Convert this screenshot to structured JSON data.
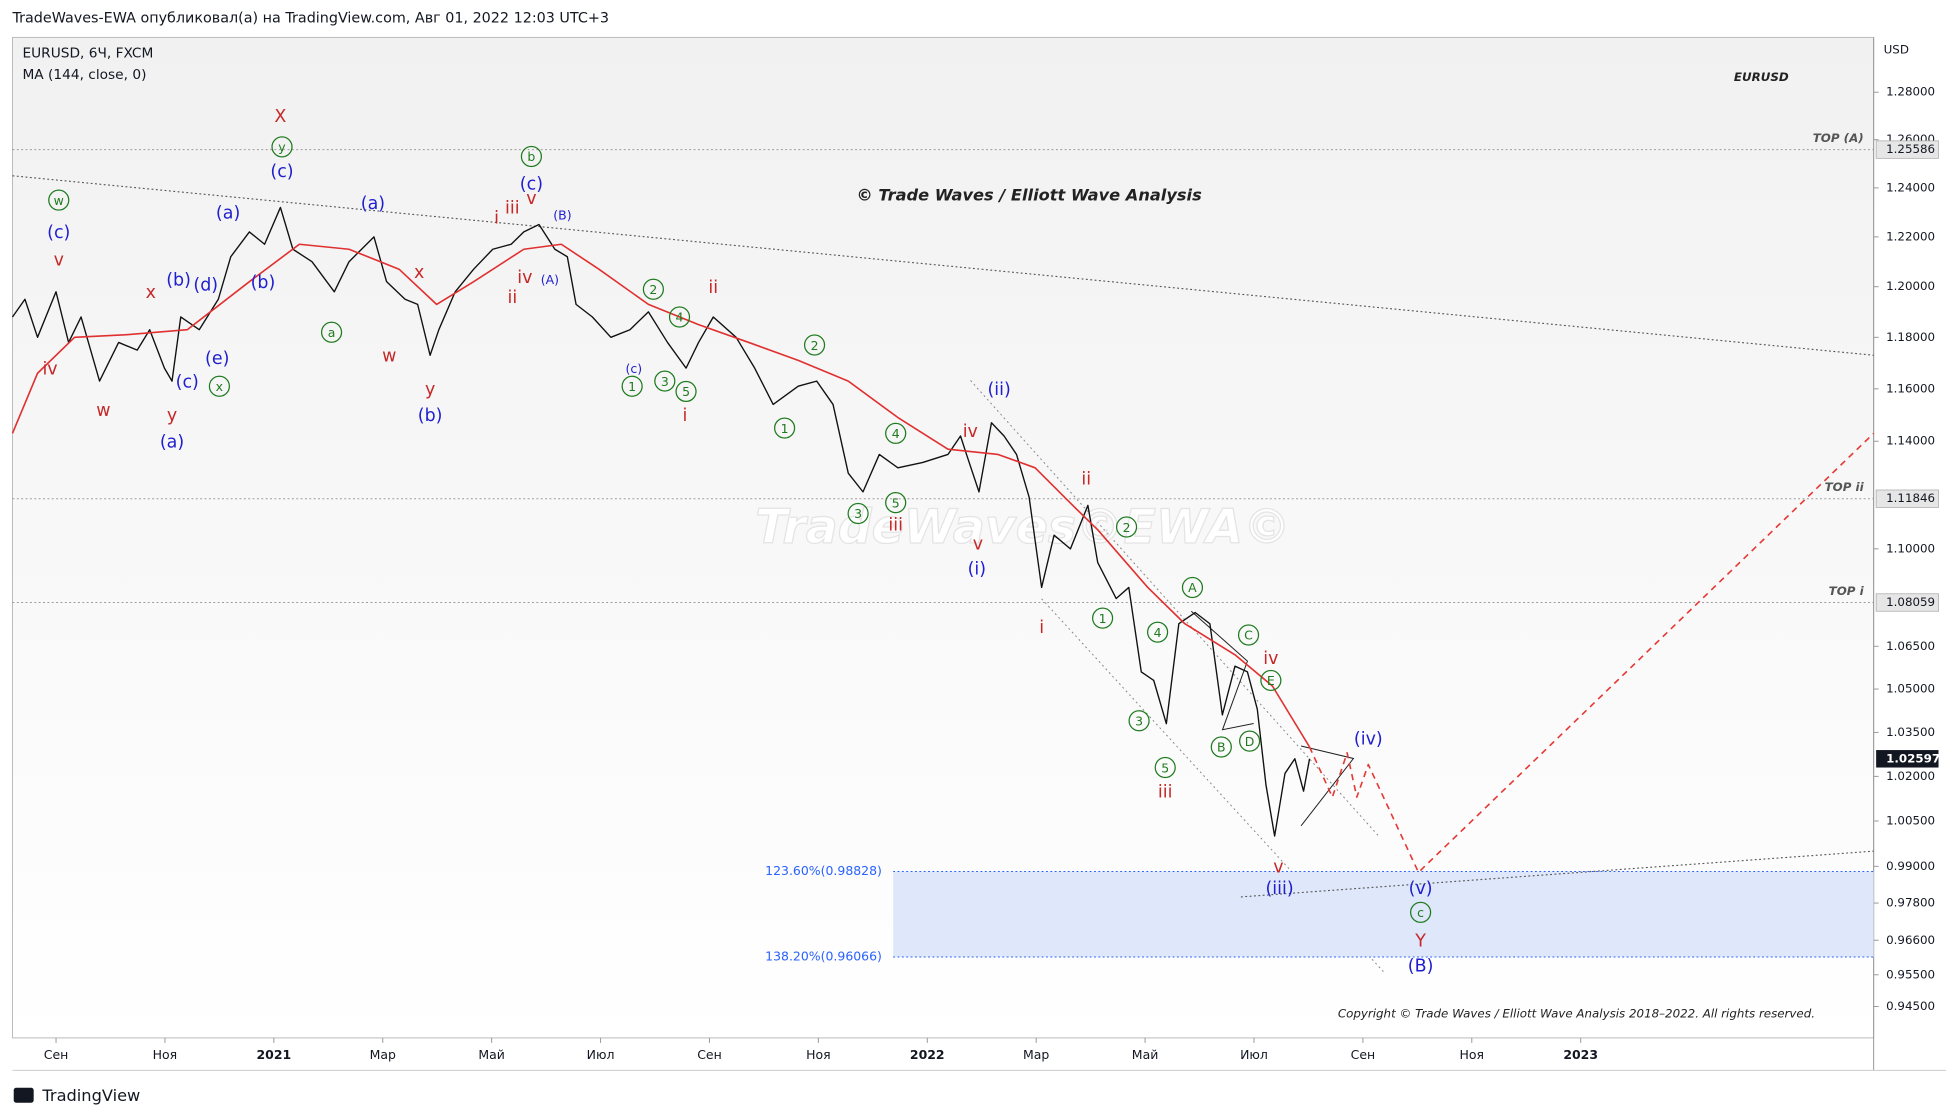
{
  "header": "TradeWaves-EWA опубликовал(а) на TradingView.com, Авг 01, 2022 12:03 UTC+3",
  "footer": "TradingView",
  "chart_data": {
    "type": "line",
    "symbol": "EURUSD, 6Ч, FXCM",
    "indicator": "MA (144, close, 0)",
    "symbol_tag": "EURUSD",
    "title": "© Trade Waves / Elliott Wave Analysis",
    "watermark": "TradeWaves©EWA©",
    "copyright": "Copyright © Trade Waves / Elliott Wave Analysis 2018–2022. All rights reserved.",
    "currency": "USD",
    "log_scale": true,
    "xlim": [
      -0.8,
      33.38
    ],
    "ylim": [
      0.9352,
      1.3035
    ],
    "xticks": [
      {
        "value": 0,
        "label": "Сен"
      },
      {
        "value": 2,
        "label": "Ноя"
      },
      {
        "value": 4,
        "label": "2021"
      },
      {
        "value": 6,
        "label": "Мар"
      },
      {
        "value": 8,
        "label": "Май"
      },
      {
        "value": 10,
        "label": "Июл"
      },
      {
        "value": 12,
        "label": "Сен"
      },
      {
        "value": 14,
        "label": "Ноя"
      },
      {
        "value": 16,
        "label": "2022"
      },
      {
        "value": 18,
        "label": "Мар"
      },
      {
        "value": 20,
        "label": "Май"
      },
      {
        "value": 22,
        "label": "Июл"
      },
      {
        "value": 24,
        "label": "Сен"
      },
      {
        "value": 26,
        "label": "Ноя"
      },
      {
        "value": 28,
        "label": "2023"
      }
    ],
    "yticks": [
      {
        "value": 1.28,
        "label": "1.28000"
      },
      {
        "value": 1.26,
        "label": "1.26000"
      },
      {
        "value": 1.24,
        "label": "1.24000"
      },
      {
        "value": 1.22,
        "label": "1.22000"
      },
      {
        "value": 1.2,
        "label": "1.20000"
      },
      {
        "value": 1.18,
        "label": "1.18000"
      },
      {
        "value": 1.16,
        "label": "1.16000"
      },
      {
        "value": 1.14,
        "label": "1.14000"
      },
      {
        "value": 1.1,
        "label": "1.10000"
      },
      {
        "value": 1.065,
        "label": "1.06500"
      },
      {
        "value": 1.05,
        "label": "1.05000"
      },
      {
        "value": 1.035,
        "label": "1.03500"
      },
      {
        "value": 1.02,
        "label": "1.02000"
      },
      {
        "value": 1.005,
        "label": "1.00500"
      },
      {
        "value": 0.99,
        "label": "0.99000"
      },
      {
        "value": 0.978,
        "label": "0.97800"
      },
      {
        "value": 0.966,
        "label": "0.96600"
      },
      {
        "value": 0.955,
        "label": "0.95500"
      },
      {
        "value": 0.945,
        "label": "0.94500"
      }
    ],
    "series": [
      {
        "color": "#111111",
        "x": [
          -0.8,
          -0.57,
          -0.34,
          0,
          0.23,
          0.46,
          0.8,
          1.15,
          1.49,
          1.72,
          1.99,
          2.13,
          2.29,
          2.63,
          2.98,
          3.21,
          3.55,
          3.83,
          4.12,
          4.35,
          4.7,
          5.11,
          5.38,
          5.84,
          6.07,
          6.41,
          6.64,
          6.87,
          7.03,
          7.33,
          7.67,
          8.02,
          8.36,
          8.59,
          8.87,
          9.16,
          9.39,
          9.55,
          9.85,
          10.19,
          10.54,
          10.88,
          11.23,
          11.57,
          11.8,
          12.07,
          12.49,
          12.83,
          13.17,
          13.63,
          13.97,
          14.27,
          14.55,
          14.82,
          15.12,
          15.46,
          15.92,
          16.38,
          16.61,
          16.72,
          16.95,
          17.18,
          17.41,
          17.64,
          17.87,
          18.1,
          18.33,
          18.63,
          18.95,
          19.13,
          19.47,
          19.7,
          19.93,
          20.16,
          20.39,
          20.62,
          20.92,
          21.19,
          21.42,
          21.65,
          21.88,
          22.06,
          22.22,
          22.38,
          22.57,
          22.75,
          22.91,
          23.02
        ],
        "values": [
          1.188,
          1.195,
          1.18,
          1.198,
          1.178,
          1.188,
          1.163,
          1.178,
          1.175,
          1.183,
          1.168,
          1.163,
          1.188,
          1.183,
          1.195,
          1.212,
          1.222,
          1.217,
          1.232,
          1.215,
          1.21,
          1.198,
          1.21,
          1.22,
          1.202,
          1.195,
          1.193,
          1.173,
          1.183,
          1.198,
          1.207,
          1.215,
          1.217,
          1.222,
          1.225,
          1.215,
          1.212,
          1.193,
          1.188,
          1.18,
          1.183,
          1.19,
          1.178,
          1.168,
          1.178,
          1.188,
          1.18,
          1.168,
          1.154,
          1.161,
          1.163,
          1.154,
          1.128,
          1.121,
          1.135,
          1.13,
          1.132,
          1.135,
          1.142,
          1.135,
          1.121,
          1.147,
          1.142,
          1.135,
          1.119,
          1.086,
          1.105,
          1.1,
          1.116,
          1.095,
          1.082,
          1.086,
          1.056,
          1.053,
          1.038,
          1.073,
          1.077,
          1.073,
          1.041,
          1.058,
          1.056,
          1.043,
          1.017,
          1.0,
          1.021,
          1.026,
          1.015,
          1.026
        ]
      },
      {
        "color": "#e03030",
        "x": [
          -0.8,
          -0.34,
          0.34,
          1.26,
          2.41,
          3.55,
          4.47,
          5.38,
          6.3,
          6.99,
          7.67,
          8.59,
          9.28,
          9.97,
          10.88,
          11.8,
          12.72,
          13.63,
          14.55,
          15.46,
          16.38,
          17.3,
          17.98,
          18.67,
          19.13,
          20.05,
          20.73,
          21.65,
          22.34,
          23.02
        ],
        "values": [
          1.143,
          1.166,
          1.18,
          1.181,
          1.183,
          1.202,
          1.217,
          1.215,
          1.207,
          1.193,
          1.202,
          1.215,
          1.217,
          1.207,
          1.193,
          1.185,
          1.178,
          1.171,
          1.163,
          1.149,
          1.137,
          1.135,
          1.13,
          1.116,
          1.107,
          1.086,
          1.073,
          1.062,
          1.051,
          1.03
        ]
      },
      {
        "color": "#e53935",
        "dash": true,
        "x": [
          23.02,
          23.44,
          23.71,
          23.89,
          24.1,
          25.02,
          33.38
        ],
        "values": [
          1.03,
          1.013,
          1.028,
          1.013,
          1.024,
          0.988,
          1.143
        ]
      }
    ],
    "trendlines": [
      {
        "color": "#555555",
        "x": [
          -0.8,
          33.38
        ],
        "values": [
          1.245,
          1.173
        ]
      },
      {
        "color": "#555555",
        "x": [
          21.76,
          33.38
        ],
        "values": [
          0.98,
          0.995
        ]
      }
    ],
    "levels": [
      {
        "value": 1.25586,
        "label": "TOP (A)"
      },
      {
        "value": 1.11846,
        "label": "TOP ii"
      },
      {
        "value": 1.08059,
        "label": "TOP i"
      }
    ],
    "last_price": 1.02597,
    "fib_levels": [
      {
        "value": 0.98828,
        "label": "123.60%(0.98828)"
      },
      {
        "value": 0.96066,
        "label": "138.20%(0.96066)"
      }
    ],
    "fib_color": "#2962ff",
    "zone_color": "#dfe7fa",
    "wave_labels": [
      {
        "text": "w",
        "x": 0.05,
        "y": 1.235,
        "color": "#1e7b1e",
        "circled": true
      },
      {
        "text": "(c)",
        "x": 0.05,
        "y": 1.222,
        "color": "#1f1fd1"
      },
      {
        "text": "v",
        "x": 0.05,
        "y": 1.211,
        "color": "#c62828"
      },
      {
        "text": "iv",
        "x": -0.11,
        "y": 1.168,
        "color": "#c62828"
      },
      {
        "text": "w",
        "x": 0.87,
        "y": 1.152,
        "color": "#c62828"
      },
      {
        "text": "x",
        "x": 1.74,
        "y": 1.198,
        "color": "#c62828"
      },
      {
        "text": "(b)",
        "x": 2.25,
        "y": 1.203,
        "color": "#1f1fd1"
      },
      {
        "text": "(d)",
        "x": 2.75,
        "y": 1.201,
        "color": "#1f1fd1"
      },
      {
        "text": "(c)",
        "x": 2.41,
        "y": 1.163,
        "color": "#1f1fd1"
      },
      {
        "text": "y",
        "x": 2.13,
        "y": 1.15,
        "color": "#c62828"
      },
      {
        "text": "(a)",
        "x": 2.13,
        "y": 1.14,
        "color": "#1f1fd1"
      },
      {
        "text": "(e)",
        "x": 2.96,
        "y": 1.172,
        "color": "#1f1fd1"
      },
      {
        "text": "x",
        "x": 3.0,
        "y": 1.161,
        "color": "#1e7b1e",
        "circled": true
      },
      {
        "text": "(a)",
        "x": 3.16,
        "y": 1.23,
        "color": "#1f1fd1"
      },
      {
        "text": "X",
        "x": 4.12,
        "y": 1.27,
        "color": "#c62828"
      },
      {
        "text": "y",
        "x": 4.15,
        "y": 1.257,
        "color": "#1e7b1e",
        "circled": true
      },
      {
        "text": "(c)",
        "x": 4.15,
        "y": 1.247,
        "color": "#1f1fd1"
      },
      {
        "text": "(b)",
        "x": 3.8,
        "y": 1.202,
        "color": "#1f1fd1"
      },
      {
        "text": "a",
        "x": 5.06,
        "y": 1.182,
        "color": "#1e7b1e",
        "circled": true
      },
      {
        "text": "(a)",
        "x": 5.82,
        "y": 1.234,
        "color": "#1f1fd1"
      },
      {
        "text": "w",
        "x": 6.12,
        "y": 1.173,
        "color": "#c62828"
      },
      {
        "text": "x",
        "x": 6.67,
        "y": 1.206,
        "color": "#c62828"
      },
      {
        "text": "y",
        "x": 6.87,
        "y": 1.16,
        "color": "#c62828"
      },
      {
        "text": "(b)",
        "x": 6.87,
        "y": 1.15,
        "color": "#1f1fd1"
      },
      {
        "text": "i",
        "x": 8.09,
        "y": 1.228,
        "color": "#c62828"
      },
      {
        "text": "iii",
        "x": 8.38,
        "y": 1.232,
        "color": "#c62828"
      },
      {
        "text": "b",
        "x": 8.73,
        "y": 1.253,
        "color": "#1e7b1e",
        "circled": true
      },
      {
        "text": "(c)",
        "x": 8.73,
        "y": 1.242,
        "color": "#1f1fd1"
      },
      {
        "text": "v",
        "x": 8.73,
        "y": 1.236,
        "color": "#c62828"
      },
      {
        "text": "iv",
        "x": 8.61,
        "y": 1.204,
        "color": "#c62828"
      },
      {
        "text": "ii",
        "x": 8.38,
        "y": 1.196,
        "color": "#c62828"
      },
      {
        "text": "(B)",
        "x": 9.3,
        "y": 1.229,
        "color": "#1f1fd1",
        "small": true
      },
      {
        "text": "(A)",
        "x": 9.07,
        "y": 1.203,
        "color": "#1f1fd1",
        "small": true
      },
      {
        "text": "2",
        "x": 10.97,
        "y": 1.199,
        "color": "#1e7b1e",
        "circled": true
      },
      {
        "text": "4",
        "x": 11.45,
        "y": 1.188,
        "color": "#1e7b1e",
        "circled": true
      },
      {
        "text": "(c)",
        "x": 10.61,
        "y": 1.168,
        "color": "#1f1fd1",
        "small": true
      },
      {
        "text": "1",
        "x": 10.58,
        "y": 1.161,
        "color": "#1e7b1e",
        "circled": true
      },
      {
        "text": "3",
        "x": 11.18,
        "y": 1.163,
        "color": "#1e7b1e",
        "circled": true
      },
      {
        "text": "5",
        "x": 11.57,
        "y": 1.159,
        "color": "#1e7b1e",
        "circled": true
      },
      {
        "text": "i",
        "x": 11.55,
        "y": 1.15,
        "color": "#c62828"
      },
      {
        "text": "ii",
        "x": 12.07,
        "y": 1.2,
        "color": "#c62828"
      },
      {
        "text": "2",
        "x": 13.93,
        "y": 1.177,
        "color": "#1e7b1e",
        "circled": true
      },
      {
        "text": "1",
        "x": 13.38,
        "y": 1.145,
        "color": "#1e7b1e",
        "circled": true
      },
      {
        "text": "4",
        "x": 15.42,
        "y": 1.143,
        "color": "#1e7b1e",
        "circled": true
      },
      {
        "text": "3",
        "x": 14.73,
        "y": 1.113,
        "color": "#1e7b1e",
        "circled": true
      },
      {
        "text": "5",
        "x": 15.42,
        "y": 1.117,
        "color": "#1e7b1e",
        "circled": true
      },
      {
        "text": "iii",
        "x": 15.42,
        "y": 1.109,
        "color": "#c62828"
      },
      {
        "text": "iv",
        "x": 16.79,
        "y": 1.144,
        "color": "#c62828"
      },
      {
        "text": "(ii)",
        "x": 17.32,
        "y": 1.16,
        "color": "#1f1fd1"
      },
      {
        "text": "v",
        "x": 16.93,
        "y": 1.102,
        "color": "#c62828"
      },
      {
        "text": "(i)",
        "x": 16.91,
        "y": 1.093,
        "color": "#1f1fd1"
      },
      {
        "text": "ii",
        "x": 18.92,
        "y": 1.126,
        "color": "#c62828"
      },
      {
        "text": "2",
        "x": 19.66,
        "y": 1.108,
        "color": "#1e7b1e",
        "circled": true
      },
      {
        "text": "i",
        "x": 18.1,
        "y": 1.072,
        "color": "#c62828"
      },
      {
        "text": "1",
        "x": 19.22,
        "y": 1.075,
        "color": "#1e7b1e",
        "circled": true
      },
      {
        "text": "A",
        "x": 20.87,
        "y": 1.086,
        "color": "#1e7b1e",
        "circled": true
      },
      {
        "text": "4",
        "x": 20.23,
        "y": 1.07,
        "color": "#1e7b1e",
        "circled": true
      },
      {
        "text": "3",
        "x": 19.89,
        "y": 1.039,
        "color": "#1e7b1e",
        "circled": true
      },
      {
        "text": "5",
        "x": 20.37,
        "y": 1.023,
        "color": "#1e7b1e",
        "circled": true
      },
      {
        "text": "iii",
        "x": 20.37,
        "y": 1.015,
        "color": "#c62828"
      },
      {
        "text": "C",
        "x": 21.9,
        "y": 1.069,
        "color": "#1e7b1e",
        "circled": true
      },
      {
        "text": "iv",
        "x": 22.31,
        "y": 1.061,
        "color": "#c62828"
      },
      {
        "text": "E",
        "x": 22.31,
        "y": 1.053,
        "color": "#1e7b1e",
        "circled": true
      },
      {
        "text": "B",
        "x": 21.4,
        "y": 1.03,
        "color": "#1e7b1e",
        "circled": true
      },
      {
        "text": "D",
        "x": 21.92,
        "y": 1.032,
        "color": "#1e7b1e",
        "circled": true
      },
      {
        "text": "(iv)",
        "x": 24.1,
        "y": 1.033,
        "color": "#1f1fd1"
      },
      {
        "text": "v",
        "x": 22.45,
        "y": 0.99,
        "color": "#c62828"
      },
      {
        "text": "(iii)",
        "x": 22.47,
        "y": 0.983,
        "color": "#1f1fd1"
      },
      {
        "text": "(v)",
        "x": 25.06,
        "y": 0.983,
        "color": "#1f1fd1"
      },
      {
        "text": "c",
        "x": 25.06,
        "y": 0.975,
        "color": "#1e7b1e",
        "circled": true
      },
      {
        "text": "Y",
        "x": 25.06,
        "y": 0.966,
        "color": "#c62828"
      },
      {
        "text": "(B)",
        "x": 25.06,
        "y": 0.958,
        "color": "#1f1fd1"
      }
    ]
  }
}
